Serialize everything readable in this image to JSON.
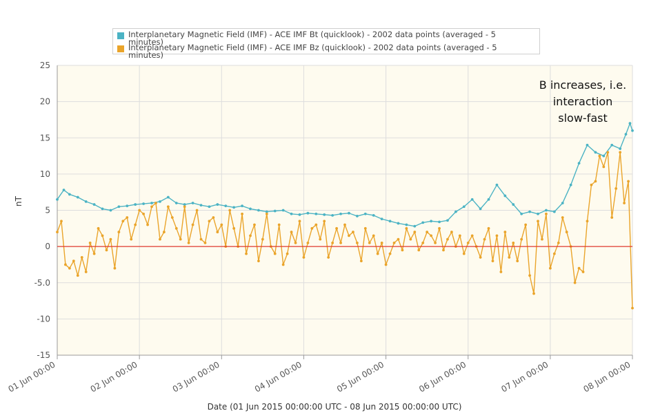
{
  "legend": {
    "items": [
      {
        "label": "Interplanetary Magnetic Field (IMF) - ACE IMF Bt (quicklook) - 2002 data points (averaged - 5 minutes)",
        "color": "#4bb3c4"
      },
      {
        "label": "Interplanetary Magnetic Field (IMF) - ACE IMF Bz (quicklook) - 2002 data points (averaged - 5 minutes)",
        "color": "#eaa42a"
      }
    ]
  },
  "annotation": "B increases, i.e. interaction slow-fast",
  "chart_data": {
    "type": "line",
    "xlabel": "Date (01 Jun 2015 00:00:00 UTC - 08 Jun 2015 00:00:00 UTC)",
    "ylabel": "nT",
    "ylim": [
      -15,
      25
    ],
    "yticks": [
      "-15",
      "-10",
      "-5.0",
      "0",
      "5",
      "10",
      "15",
      "20",
      "25"
    ],
    "xticks": [
      "01 Jun 00:00",
      "02 Jun 00:00",
      "03 Jun 00:00",
      "04 Jun 00:00",
      "05 Jun 00:00",
      "06 Jun 00:00",
      "07 Jun 00:00",
      "08 Jun 00:00"
    ],
    "xlim_days": [
      0,
      7
    ],
    "grid": true,
    "zero_line_color": "#e03a2f",
    "plot_background": "#fefbef",
    "series": [
      {
        "name": "Interplanetary Magnetic Field (IMF) - ACE IMF Bt (quicklook) - 2002 data points (averaged - 5 minutes)",
        "color": "#4bb3c4",
        "x_days": [
          0,
          0.08,
          0.15,
          0.25,
          0.35,
          0.45,
          0.55,
          0.65,
          0.75,
          0.85,
          0.95,
          1.05,
          1.15,
          1.25,
          1.35,
          1.45,
          1.55,
          1.65,
          1.75,
          1.85,
          1.95,
          2.05,
          2.15,
          2.25,
          2.35,
          2.45,
          2.55,
          2.65,
          2.75,
          2.85,
          2.95,
          3.05,
          3.15,
          3.25,
          3.35,
          3.45,
          3.55,
          3.65,
          3.75,
          3.85,
          3.95,
          4.05,
          4.15,
          4.25,
          4.35,
          4.45,
          4.55,
          4.65,
          4.75,
          4.85,
          4.95,
          5.05,
          5.15,
          5.25,
          5.35,
          5.45,
          5.55,
          5.65,
          5.75,
          5.85,
          5.95,
          6.05,
          6.15,
          6.25,
          6.35,
          6.45,
          6.55,
          6.65,
          6.75,
          6.85,
          6.92,
          6.97,
          7.0
        ],
        "y": [
          6.5,
          7.8,
          7.2,
          6.8,
          6.2,
          5.8,
          5.2,
          5.0,
          5.5,
          5.6,
          5.8,
          5.9,
          6.0,
          6.2,
          6.8,
          6.0,
          5.8,
          6.0,
          5.7,
          5.5,
          5.8,
          5.6,
          5.4,
          5.6,
          5.2,
          5.0,
          4.8,
          4.9,
          5.0,
          4.5,
          4.4,
          4.6,
          4.5,
          4.4,
          4.3,
          4.5,
          4.6,
          4.2,
          4.5,
          4.3,
          3.8,
          3.5,
          3.2,
          3.0,
          2.8,
          3.3,
          3.5,
          3.4,
          3.6,
          4.8,
          5.5,
          6.5,
          5.2,
          6.5,
          8.5,
          7.0,
          5.8,
          4.5,
          4.8,
          4.5,
          5.0,
          4.8,
          6.0,
          8.5,
          11.5,
          14.0,
          13.0,
          12.5,
          14.0,
          13.5,
          15.5,
          17.0,
          16.0
        ]
      },
      {
        "name": "Interplanetary Magnetic Field (IMF) - ACE IMF Bz (quicklook) - 2002 data points (averaged - 5 minutes)",
        "color": "#eaa42a",
        "x_days": [
          0,
          0.05,
          0.1,
          0.15,
          0.2,
          0.25,
          0.3,
          0.35,
          0.4,
          0.45,
          0.5,
          0.55,
          0.6,
          0.65,
          0.7,
          0.75,
          0.8,
          0.85,
          0.9,
          0.95,
          1.0,
          1.05,
          1.1,
          1.15,
          1.2,
          1.25,
          1.3,
          1.35,
          1.4,
          1.45,
          1.5,
          1.55,
          1.6,
          1.65,
          1.7,
          1.75,
          1.8,
          1.85,
          1.9,
          1.95,
          2.0,
          2.05,
          2.1,
          2.15,
          2.2,
          2.25,
          2.3,
          2.35,
          2.4,
          2.45,
          2.5,
          2.55,
          2.6,
          2.65,
          2.7,
          2.75,
          2.8,
          2.85,
          2.9,
          2.95,
          3.0,
          3.05,
          3.1,
          3.15,
          3.2,
          3.25,
          3.3,
          3.35,
          3.4,
          3.45,
          3.5,
          3.55,
          3.6,
          3.65,
          3.7,
          3.75,
          3.8,
          3.85,
          3.9,
          3.95,
          4.0,
          4.05,
          4.1,
          4.15,
          4.2,
          4.25,
          4.3,
          4.35,
          4.4,
          4.45,
          4.5,
          4.55,
          4.6,
          4.65,
          4.7,
          4.75,
          4.8,
          4.85,
          4.9,
          4.95,
          5.0,
          5.05,
          5.1,
          5.15,
          5.2,
          5.25,
          5.3,
          5.35,
          5.4,
          5.45,
          5.5,
          5.55,
          5.6,
          5.65,
          5.7,
          5.75,
          5.8,
          5.85,
          5.9,
          5.95,
          6.0,
          6.05,
          6.1,
          6.15,
          6.2,
          6.25,
          6.3,
          6.35,
          6.4,
          6.45,
          6.5,
          6.55,
          6.6,
          6.65,
          6.7,
          6.75,
          6.8,
          6.85,
          6.9,
          6.95,
          7.0
        ],
        "y": [
          2.0,
          3.5,
          -2.5,
          -3.0,
          -2.0,
          -4.0,
          -1.5,
          -3.5,
          0.5,
          -1.0,
          2.5,
          1.5,
          -0.5,
          1.0,
          -3.0,
          2.0,
          3.5,
          4.0,
          1.0,
          3.0,
          5.0,
          4.5,
          3.0,
          5.5,
          6.0,
          1.0,
          2.0,
          5.5,
          4.0,
          2.5,
          1.0,
          5.5,
          0.5,
          3.0,
          5.0,
          1.0,
          0.5,
          3.5,
          4.0,
          2.0,
          3.0,
          0.0,
          5.0,
          2.5,
          0.0,
          4.5,
          -1.0,
          1.5,
          3.0,
          -2.0,
          1.0,
          4.5,
          0.0,
          -1.0,
          3.0,
          -2.5,
          -1.0,
          2.0,
          0.5,
          3.5,
          -1.5,
          0.5,
          2.5,
          3.0,
          1.0,
          3.5,
          -1.5,
          0.5,
          2.5,
          0.5,
          3.0,
          1.5,
          2.0,
          0.5,
          -2.0,
          2.5,
          0.5,
          1.5,
          -1.0,
          0.5,
          -2.5,
          -1.0,
          0.5,
          1.0,
          -0.5,
          2.5,
          1.0,
          2.0,
          -0.5,
          0.5,
          2.0,
          1.5,
          0.5,
          2.5,
          -0.5,
          1.0,
          2.0,
          0.0,
          1.5,
          -1.0,
          0.5,
          1.5,
          0.0,
          -1.5,
          1.0,
          2.5,
          -2.0,
          1.5,
          -3.5,
          2.0,
          -1.5,
          0.5,
          -2.0,
          1.0,
          3.0,
          -4.0,
          -6.5,
          3.5,
          1.0,
          4.5,
          -3.0,
          -1.0,
          0.5,
          4.0,
          2.0,
          0.0,
          -5.0,
          -3.0,
          -3.5,
          3.5,
          8.5,
          9.0,
          12.5,
          11.0,
          13.0,
          4.0,
          8.0,
          13.0,
          6.0,
          9.0,
          -8.5
        ]
      }
    ]
  }
}
